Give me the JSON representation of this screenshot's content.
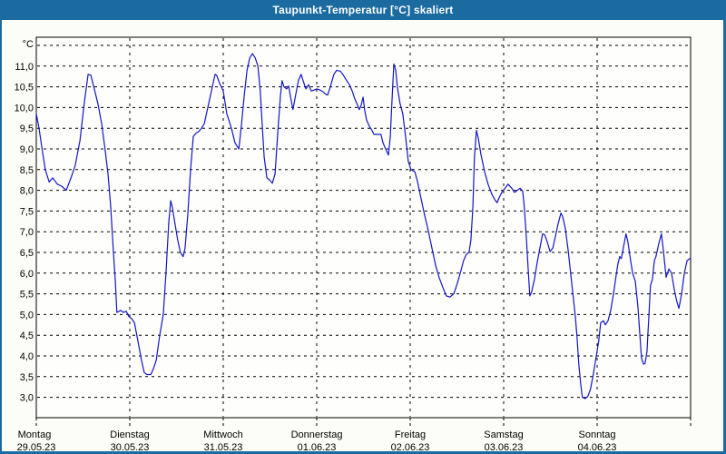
{
  "window": {
    "title": "Taupunkt-Temperatur [°C] skaliert"
  },
  "colors": {
    "titlebar": "#1b6aa0",
    "frame": "#1b6aa0",
    "background": "#fcfdf8",
    "plot_background": "#fefefc",
    "line": "#1414c8",
    "grid": "#000000",
    "text": "#000000"
  },
  "chart_data": {
    "type": "line",
    "title": "Taupunkt-Temperatur [°C] skaliert",
    "unit_label": "°C",
    "xlabel": "",
    "ylabel": "",
    "ylim": [
      2.5,
      11.7
    ],
    "grid": "dashed",
    "legend_position": "none",
    "x_axis_unit": "hours since Montag 00:00",
    "x_total_hours": 168,
    "x_days": [
      {
        "name": "Montag",
        "date": "29.05.23"
      },
      {
        "name": "Dienstag",
        "date": "30.05.23"
      },
      {
        "name": "Mittwoch",
        "date": "31.05.23"
      },
      {
        "name": "Donnerstag",
        "date": "01.06.23"
      },
      {
        "name": "Freitag",
        "date": "02.06.23"
      },
      {
        "name": "Samstag",
        "date": "03.06.23"
      },
      {
        "name": "Sonntag",
        "date": "04.06.23"
      }
    ],
    "ygrid_values": [
      3.0,
      3.5,
      4.0,
      4.5,
      5.0,
      5.5,
      6.0,
      6.5,
      7.0,
      7.5,
      8.0,
      8.5,
      9.0,
      9.5,
      10.0,
      10.5,
      11.0,
      11.5
    ],
    "yticks": [
      {
        "v": 11.0,
        "label": "11,0"
      },
      {
        "v": 10.5,
        "label": "10,5"
      },
      {
        "v": 10.0,
        "label": "10,0"
      },
      {
        "v": 9.5,
        "label": "9,5"
      },
      {
        "v": 9.0,
        "label": "9,0"
      },
      {
        "v": 8.5,
        "label": "8,5"
      },
      {
        "v": 8.0,
        "label": "8,0"
      },
      {
        "v": 7.5,
        "label": "7,5"
      },
      {
        "v": 7.0,
        "label": "7,0"
      },
      {
        "v": 6.5,
        "label": "6,5"
      },
      {
        "v": 6.0,
        "label": "6,0"
      },
      {
        "v": 5.5,
        "label": "5,5"
      },
      {
        "v": 5.0,
        "label": "5,0"
      },
      {
        "v": 4.5,
        "label": "4,5"
      },
      {
        "v": 4.0,
        "label": "4,0"
      },
      {
        "v": 3.5,
        "label": "3,5"
      },
      {
        "v": 3.0,
        "label": "3,0"
      }
    ],
    "series": [
      {
        "name": "Taupunkt",
        "points": [
          [
            0,
            9.85
          ],
          [
            0.7,
            9.5
          ],
          [
            1.4,
            9.05
          ],
          [
            2.3,
            8.5
          ],
          [
            3.3,
            8.2
          ],
          [
            4.2,
            8.3
          ],
          [
            5.4,
            8.15
          ],
          [
            6.5,
            8.1
          ],
          [
            7.7,
            8.0
          ],
          [
            8.9,
            8.3
          ],
          [
            10,
            8.6
          ],
          [
            11.2,
            9.2
          ],
          [
            12.3,
            10.1
          ],
          [
            13.3,
            10.8
          ],
          [
            14,
            10.78
          ],
          [
            14.9,
            10.45
          ],
          [
            15.8,
            10.1
          ],
          [
            16.8,
            9.6
          ],
          [
            17.7,
            8.95
          ],
          [
            18.4,
            8.4
          ],
          [
            19.1,
            7.6
          ],
          [
            19.8,
            6.5
          ],
          [
            20.3,
            5.8
          ],
          [
            20.7,
            5.05
          ],
          [
            21.7,
            5.1
          ],
          [
            22.4,
            5.05
          ],
          [
            23.1,
            5.08
          ],
          [
            23.8,
            4.95
          ],
          [
            24.5,
            4.9
          ],
          [
            25.2,
            4.8
          ],
          [
            25.6,
            4.6
          ],
          [
            26.3,
            4.25
          ],
          [
            27,
            3.9
          ],
          [
            27.7,
            3.6
          ],
          [
            28.4,
            3.55
          ],
          [
            29.4,
            3.55
          ],
          [
            30.1,
            3.7
          ],
          [
            30.8,
            3.9
          ],
          [
            31.7,
            4.5
          ],
          [
            32.6,
            5.0
          ],
          [
            33.3,
            6.0
          ],
          [
            34,
            7.2
          ],
          [
            34.5,
            7.75
          ],
          [
            34.9,
            7.6
          ],
          [
            35.6,
            7.2
          ],
          [
            36.3,
            6.8
          ],
          [
            37,
            6.5
          ],
          [
            37.7,
            6.4
          ],
          [
            38.2,
            6.6
          ],
          [
            38.9,
            7.4
          ],
          [
            39.6,
            8.5
          ],
          [
            40.3,
            9.3
          ],
          [
            41,
            9.38
          ],
          [
            41.7,
            9.42
          ],
          [
            42.4,
            9.5
          ],
          [
            43.1,
            9.6
          ],
          [
            43.8,
            9.9
          ],
          [
            44.5,
            10.2
          ],
          [
            45.2,
            10.5
          ],
          [
            45.9,
            10.8
          ],
          [
            46.3,
            10.78
          ],
          [
            47,
            10.6
          ],
          [
            48,
            10.4
          ],
          [
            48.9,
            9.85
          ],
          [
            50.1,
            9.5
          ],
          [
            51,
            9.15
          ],
          [
            52,
            9.0
          ],
          [
            52.6,
            9.5
          ],
          [
            53.4,
            10.3
          ],
          [
            54.1,
            10.9
          ],
          [
            54.8,
            11.2
          ],
          [
            55.5,
            11.3
          ],
          [
            56.2,
            11.2
          ],
          [
            56.9,
            11.0
          ],
          [
            57.5,
            10.4
          ],
          [
            58,
            9.6
          ],
          [
            58.5,
            8.8
          ],
          [
            59.2,
            8.3
          ],
          [
            59.9,
            8.25
          ],
          [
            60.6,
            8.17
          ],
          [
            61.3,
            8.4
          ],
          [
            62,
            9.4
          ],
          [
            62.7,
            10.3
          ],
          [
            63.1,
            10.65
          ],
          [
            63.6,
            10.5
          ],
          [
            64.3,
            10.45
          ],
          [
            64.8,
            10.52
          ],
          [
            65.2,
            10.3
          ],
          [
            65.9,
            9.95
          ],
          [
            66.6,
            10.3
          ],
          [
            67.3,
            10.65
          ],
          [
            68,
            10.8
          ],
          [
            68.5,
            10.65
          ],
          [
            69.2,
            10.45
          ],
          [
            69.9,
            10.55
          ],
          [
            70.6,
            10.4
          ],
          [
            71.3,
            10.42
          ],
          [
            72,
            10.45
          ],
          [
            72.9,
            10.42
          ],
          [
            73.6,
            10.38
          ],
          [
            74.3,
            10.32
          ],
          [
            74.8,
            10.3
          ],
          [
            75.5,
            10.5
          ],
          [
            76.4,
            10.8
          ],
          [
            77.1,
            10.9
          ],
          [
            78,
            10.88
          ],
          [
            78.7,
            10.8
          ],
          [
            79.7,
            10.65
          ],
          [
            80.4,
            10.55
          ],
          [
            81.1,
            10.4
          ],
          [
            81.8,
            10.2
          ],
          [
            82.5,
            10.05
          ],
          [
            82.9,
            9.95
          ],
          [
            83.4,
            10.05
          ],
          [
            83.9,
            10.25
          ],
          [
            84.3,
            9.95
          ],
          [
            84.8,
            9.7
          ],
          [
            85.5,
            9.55
          ],
          [
            86.2,
            9.45
          ],
          [
            86.7,
            9.35
          ],
          [
            88.5,
            9.35
          ],
          [
            89,
            9.15
          ],
          [
            89.7,
            9.0
          ],
          [
            90.4,
            8.85
          ],
          [
            90.9,
            9.3
          ],
          [
            91.3,
            10.1
          ],
          [
            91.8,
            11.05
          ],
          [
            92.3,
            10.9
          ],
          [
            92.7,
            10.5
          ],
          [
            93.4,
            10.1
          ],
          [
            94.1,
            9.85
          ],
          [
            94.8,
            9.3
          ],
          [
            95.5,
            8.7
          ],
          [
            96.2,
            8.5
          ],
          [
            97.2,
            8.45
          ],
          [
            97.9,
            8.2
          ],
          [
            98.8,
            7.8
          ],
          [
            99.7,
            7.4
          ],
          [
            100.7,
            7.0
          ],
          [
            101.6,
            6.6
          ],
          [
            102.5,
            6.2
          ],
          [
            103.4,
            5.9
          ],
          [
            104.4,
            5.65
          ],
          [
            105.3,
            5.45
          ],
          [
            106.2,
            5.42
          ],
          [
            107.2,
            5.5
          ],
          [
            108.1,
            5.75
          ],
          [
            109,
            6.05
          ],
          [
            109.7,
            6.3
          ],
          [
            110.4,
            6.45
          ],
          [
            111.1,
            6.5
          ],
          [
            111.6,
            6.8
          ],
          [
            112.1,
            7.6
          ],
          [
            112.5,
            8.8
          ],
          [
            113,
            9.45
          ],
          [
            113.5,
            9.25
          ],
          [
            114.2,
            8.85
          ],
          [
            115.1,
            8.45
          ],
          [
            116,
            8.15
          ],
          [
            117,
            7.9
          ],
          [
            117.7,
            7.78
          ],
          [
            118.3,
            7.7
          ],
          [
            119,
            7.85
          ],
          [
            119.7,
            7.98
          ],
          [
            120.4,
            8.05
          ],
          [
            121.1,
            8.15
          ],
          [
            122.1,
            8.05
          ],
          [
            122.8,
            7.95
          ],
          [
            123.5,
            8.0
          ],
          [
            124.2,
            8.05
          ],
          [
            124.9,
            7.98
          ],
          [
            125.3,
            7.6
          ],
          [
            125.8,
            6.9
          ],
          [
            126.3,
            6.1
          ],
          [
            126.7,
            5.45
          ],
          [
            127.2,
            5.55
          ],
          [
            127.9,
            5.85
          ],
          [
            128.6,
            6.25
          ],
          [
            129.3,
            6.6
          ],
          [
            130,
            6.95
          ],
          [
            130.5,
            6.93
          ],
          [
            131.2,
            6.75
          ],
          [
            131.9,
            6.52
          ],
          [
            132.6,
            6.6
          ],
          [
            133.3,
            6.9
          ],
          [
            134,
            7.2
          ],
          [
            134.7,
            7.45
          ],
          [
            135.1,
            7.38
          ],
          [
            135.8,
            7.1
          ],
          [
            136.5,
            6.6
          ],
          [
            137.2,
            6.0
          ],
          [
            138.4,
            4.95
          ],
          [
            138.8,
            4.5
          ],
          [
            139.3,
            3.8
          ],
          [
            139.8,
            3.3
          ],
          [
            140.2,
            3.0
          ],
          [
            140.9,
            2.97
          ],
          [
            141.6,
            3.02
          ],
          [
            142.3,
            3.2
          ],
          [
            143,
            3.55
          ],
          [
            143.7,
            3.95
          ],
          [
            144.4,
            4.35
          ],
          [
            144.9,
            4.8
          ],
          [
            145.6,
            4.85
          ],
          [
            146.1,
            4.75
          ],
          [
            146.8,
            4.85
          ],
          [
            147.5,
            5.1
          ],
          [
            148.2,
            5.5
          ],
          [
            148.9,
            5.95
          ],
          [
            149.3,
            6.2
          ],
          [
            149.8,
            6.4
          ],
          [
            150.2,
            6.35
          ],
          [
            150.7,
            6.6
          ],
          [
            151.4,
            6.95
          ],
          [
            151.9,
            6.75
          ],
          [
            152.6,
            6.3
          ],
          [
            153.1,
            6.0
          ],
          [
            153.8,
            5.8
          ],
          [
            154.5,
            5.15
          ],
          [
            154.9,
            4.6
          ],
          [
            155.4,
            3.95
          ],
          [
            155.9,
            3.8
          ],
          [
            156.3,
            3.82
          ],
          [
            156.8,
            4.1
          ],
          [
            157.3,
            5.0
          ],
          [
            157.7,
            5.7
          ],
          [
            158.2,
            5.85
          ],
          [
            158.7,
            6.3
          ],
          [
            159.1,
            6.4
          ],
          [
            159.8,
            6.7
          ],
          [
            160.5,
            6.95
          ],
          [
            161,
            6.55
          ],
          [
            161.7,
            5.9
          ],
          [
            162.4,
            6.1
          ],
          [
            163.1,
            6.0
          ],
          [
            163.8,
            5.6
          ],
          [
            164.5,
            5.3
          ],
          [
            165,
            5.15
          ],
          [
            165.7,
            5.5
          ],
          [
            166.4,
            6.0
          ],
          [
            167.1,
            6.3
          ],
          [
            167.8,
            6.35
          ]
        ]
      }
    ]
  }
}
